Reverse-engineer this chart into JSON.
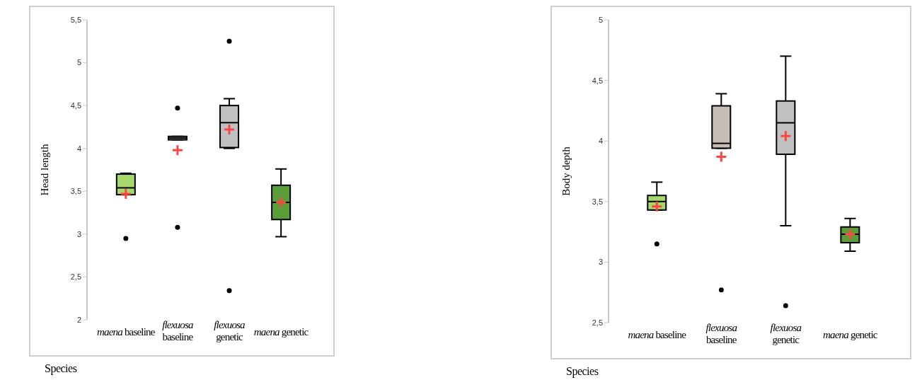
{
  "chart_data": [
    {
      "type": "box",
      "ylabel": "Head length",
      "xlabel": "Species",
      "categories": [
        "maena baseline",
        "flexuosa baseline",
        "flexuosa genetic",
        "maena genetic"
      ],
      "colors": [
        "#a6d86e",
        "#c8bcb8",
        "#c0c0c0",
        "#5a9e3a"
      ],
      "boxes": [
        {
          "low": 3.46,
          "q1": 3.46,
          "median": 3.54,
          "q3": 3.7,
          "high": 3.71,
          "mean": 3.47,
          "outliers": [
            2.95
          ]
        },
        {
          "low": 4.1,
          "q1": 4.1,
          "median": 4.12,
          "q3": 4.14,
          "high": 4.14,
          "mean": 3.98,
          "outliers": [
            4.47,
            3.08
          ]
        },
        {
          "low": 4.0,
          "q1": 4.01,
          "median": 4.3,
          "q3": 4.5,
          "high": 4.58,
          "mean": 4.22,
          "outliers": [
            5.25,
            2.34
          ]
        },
        {
          "low": 2.97,
          "q1": 3.17,
          "median": 3.37,
          "q3": 3.57,
          "high": 3.76,
          "mean": 3.37
        }
      ],
      "ylim": [
        2,
        5.5
      ],
      "yticks": [
        2,
        {
          "value": 2.5,
          "label": "2,5"
        },
        3,
        {
          "value": 3.5,
          "label": "3,5"
        },
        4,
        {
          "value": 4.5,
          "label": "4,5"
        },
        5,
        {
          "value": 5.5,
          "label": "5,5"
        }
      ],
      "grid": false,
      "legend": false
    },
    {
      "type": "box",
      "ylabel": "Body depth",
      "xlabel": "Species",
      "categories": [
        "maena baseline",
        "flexuosa baseline",
        "flexuosa genetic",
        "maena genetic"
      ],
      "colors": [
        "#a6d86e",
        "#c8bcb8",
        "#c0c0c0",
        "#5a9e3a"
      ],
      "boxes": [
        {
          "low": 3.43,
          "q1": 3.43,
          "median": 3.5,
          "q3": 3.55,
          "high": 3.66,
          "mean": 3.46,
          "outliers": [
            3.15
          ]
        },
        {
          "low": 3.94,
          "q1": 3.94,
          "median": 3.98,
          "q3": 4.29,
          "high": 4.39,
          "mean": 3.87,
          "outliers": [
            2.77
          ]
        },
        {
          "low": 3.3,
          "q1": 3.89,
          "median": 4.15,
          "q3": 4.33,
          "high": 4.7,
          "mean": 4.04,
          "outliers": [
            2.64
          ]
        },
        {
          "low": 3.09,
          "q1": 3.16,
          "median": 3.23,
          "q3": 3.29,
          "high": 3.36,
          "mean": 3.23
        }
      ],
      "ylim": [
        2.5,
        5
      ],
      "yticks": [
        {
          "value": 2.5,
          "label": "2,5"
        },
        3,
        {
          "value": 3.5,
          "label": "3,5"
        },
        4,
        {
          "value": 4.5,
          "label": "4,5"
        },
        5
      ],
      "grid": false,
      "legend": false
    }
  ]
}
